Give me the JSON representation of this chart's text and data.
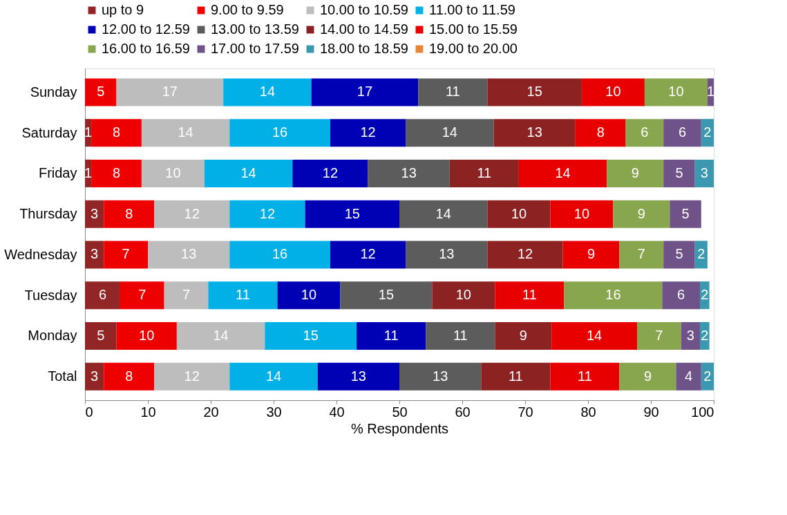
{
  "chart_data": {
    "type": "bar",
    "orientation": "horizontal",
    "stacked": true,
    "xlabel": "% Respondents",
    "categories": [
      "Sunday",
      "Saturday",
      "Friday",
      "Thursday",
      "Wednesday",
      "Tuesday",
      "Monday",
      "Total"
    ],
    "xlim": [
      0,
      100
    ],
    "xticks": [
      0,
      10,
      20,
      30,
      40,
      50,
      60,
      70,
      80,
      90,
      100
    ],
    "grid": false,
    "legend": "top",
    "series": [
      {
        "name": "up to 9",
        "color": "#922626",
        "values": [
          0,
          1,
          1,
          3,
          3,
          5.6,
          5,
          3
        ],
        "value_labels": [
          null,
          "1",
          "1",
          "3",
          "3",
          "6",
          "5",
          "3"
        ]
      },
      {
        "name": "9.00 to 9.59",
        "color": "#ee0000",
        "values": [
          5,
          8,
          8,
          8,
          7,
          7,
          9.6,
          8
        ],
        "value_labels": [
          "5",
          "8",
          "8",
          "8",
          "7",
          "7",
          "10",
          "8"
        ]
      },
      {
        "name": "10.00 to 10.59",
        "color": "#bdbdbd",
        "values": [
          17,
          14,
          10,
          12,
          13,
          7,
          14,
          12
        ],
        "value_labels": [
          "17",
          "14",
          "10",
          "12",
          "13",
          "7",
          "14",
          "12"
        ]
      },
      {
        "name": "11.00 to 11.59",
        "color": "#00b0e6",
        "values": [
          14,
          16,
          14,
          12,
          16,
          11,
          14.6,
          14
        ],
        "value_labels": [
          "14",
          "16",
          "14",
          "12",
          "16",
          "11",
          "15",
          "14"
        ]
      },
      {
        "name": "12.00 to 12.59",
        "color": "#0000b4",
        "values": [
          17,
          12,
          12,
          15,
          12,
          10,
          11,
          13
        ],
        "value_labels": [
          "17",
          "12",
          "12",
          "15",
          "12",
          "10",
          "11",
          "13"
        ]
      },
      {
        "name": "13.00 to 13.59",
        "color": "#5c5c5c",
        "values": [
          11,
          14,
          13,
          14,
          13,
          14.6,
          11,
          13
        ],
        "value_labels": [
          "11",
          "14",
          "13",
          "14",
          "13",
          "15",
          "11",
          "13"
        ]
      },
      {
        "name": "14.00 to 14.59",
        "color": "#8c2222",
        "values": [
          15,
          13,
          11,
          10,
          12,
          10,
          9,
          11
        ],
        "value_labels": [
          "15",
          "13",
          "11",
          "10",
          "12",
          "10",
          "9",
          "11"
        ]
      },
      {
        "name": "15.00 to 15.59",
        "color": "#e80000",
        "values": [
          10,
          8,
          14,
          10,
          9,
          11,
          13.6,
          11
        ],
        "value_labels": [
          "10",
          "8",
          "14",
          "10",
          "9",
          "11",
          "14",
          "11"
        ]
      },
      {
        "name": "16.00 to 16.59",
        "color": "#88a64e",
        "values": [
          10,
          6,
          9,
          9,
          7,
          15.6,
          7,
          9
        ],
        "value_labels": [
          "10",
          "6",
          "9",
          "9",
          "7",
          "16",
          "7",
          "9"
        ]
      },
      {
        "name": "17.00 to 17.59",
        "color": "#6e5288",
        "values": [
          1,
          6,
          5,
          5,
          5,
          6,
          3,
          4
        ],
        "value_labels": [
          "1",
          "6",
          "5",
          "5",
          "5",
          "6",
          "3",
          "4"
        ]
      },
      {
        "name": "18.00 to 18.59",
        "color": "#3a98b0",
        "values": [
          null,
          2,
          3,
          0,
          2,
          1.5,
          1.5,
          2
        ],
        "value_labels": [
          null,
          "2",
          "3",
          null,
          "2",
          "2",
          "2",
          "2"
        ]
      },
      {
        "name": "19.00 to 20.00",
        "color": "#e8873a",
        "values": [
          null,
          0,
          null,
          null,
          null,
          null,
          null,
          0
        ],
        "value_labels": [
          null,
          null,
          null,
          null,
          null,
          null,
          null,
          null
        ]
      }
    ]
  }
}
